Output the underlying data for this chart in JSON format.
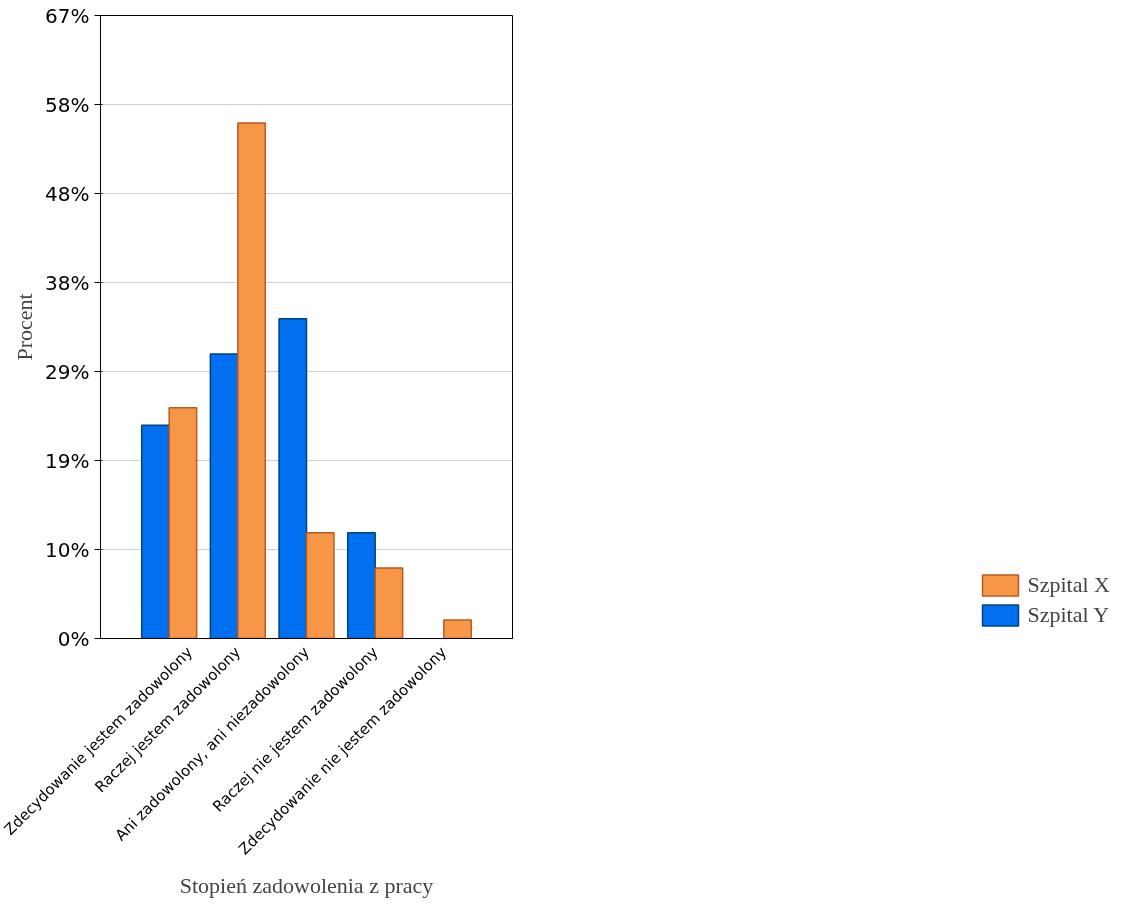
{
  "chart_data": {
    "type": "bar",
    "xlabel": "Stopień zadowolenia z pracy",
    "ylabel": "Procent",
    "categories": [
      "Zdecydowanie jestem zadowolony",
      "Raczej jestem zadowolony",
      "Ani zadowolony, ani niezadowolony",
      "Raczej nie jestem zadowolony",
      "Zdecydowanie nie jestem zadowolony"
    ],
    "series": [
      {
        "name": "Szpital Y",
        "color": "#0070f0",
        "values": [
          23.0,
          30.7,
          34.5,
          11.4,
          null
        ]
      },
      {
        "name": "Szpital X",
        "color": "#f79646",
        "values": [
          24.9,
          55.6,
          11.4,
          7.6,
          2.0
        ]
      }
    ],
    "ylim": [
      0,
      67.2
    ],
    "yticks": [
      {
        "value": 0,
        "label": "0%"
      },
      {
        "value": 9.6,
        "label": "10%"
      },
      {
        "value": 19.2,
        "label": "19%"
      },
      {
        "value": 28.8,
        "label": "29%"
      },
      {
        "value": 38.4,
        "label": "38%"
      },
      {
        "value": 48,
        "label": "48%"
      },
      {
        "value": 57.6,
        "label": "58%"
      },
      {
        "value": 67.2,
        "label": "67%"
      }
    ],
    "grid": "y",
    "legend": "bottom right"
  }
}
